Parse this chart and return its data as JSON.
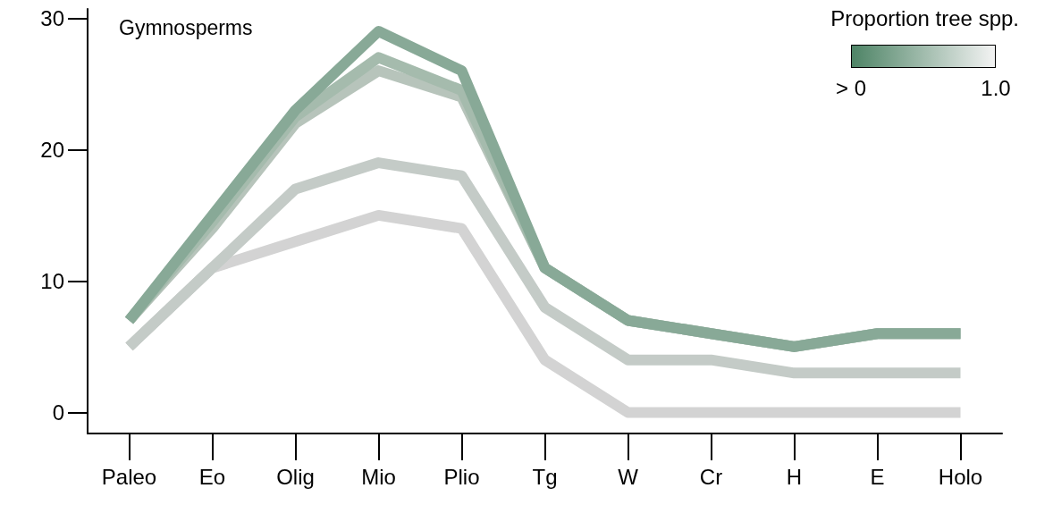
{
  "chart_data": {
    "type": "line",
    "title": "Gymnosperms",
    "clabel": "Proportion tree spp.",
    "annotations": [
      "> 0",
      "1.0"
    ],
    "categories": [
      "Paleo",
      "Eo",
      "Olig",
      "Mio",
      "Plio",
      "Tg",
      "W",
      "Cr",
      "H",
      "E",
      "Holo"
    ],
    "ylim": [
      -1.6,
      30.7
    ],
    "yticks": [
      0,
      10,
      20,
      30
    ],
    "grid": false,
    "marker": "none",
    "line_style": "solid",
    "series": [
      {
        "color": "#d3d3d3",
        "values": [
          5,
          11,
          13,
          15,
          14,
          4,
          0,
          0,
          0,
          0,
          0
        ]
      },
      {
        "color": "#c4cbc7",
        "values": [
          5,
          11,
          17,
          19,
          18,
          8,
          4,
          4,
          3,
          3,
          3
        ]
      },
      {
        "color": "#b7c4bb",
        "values": [
          7,
          14,
          22,
          26,
          24,
          11,
          7,
          6,
          5,
          6,
          6
        ]
      },
      {
        "color": "#a5bbad",
        "values": [
          7,
          14.5,
          22.5,
          27,
          24.5,
          11,
          7,
          6,
          5,
          6,
          6
        ]
      },
      {
        "color": "#88a997",
        "values": [
          7,
          15,
          23,
          29,
          26,
          11,
          7,
          6,
          5,
          6,
          6
        ]
      }
    ]
  }
}
